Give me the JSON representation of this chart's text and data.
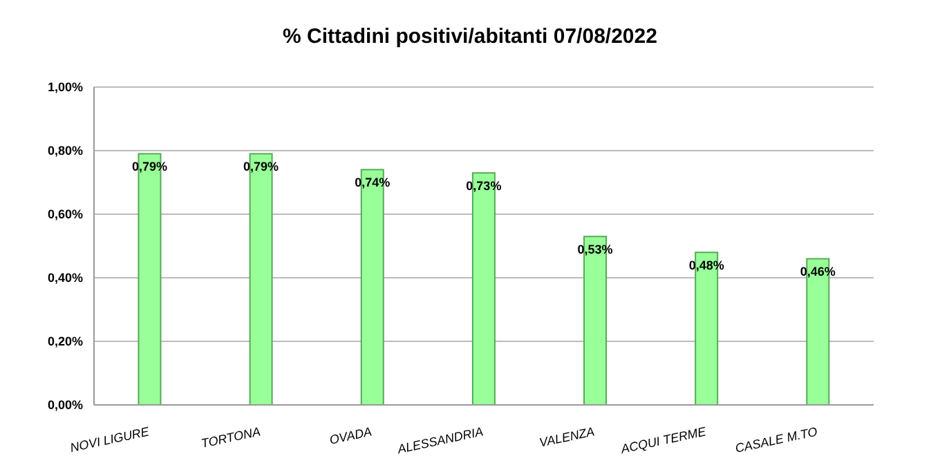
{
  "chart_data": {
    "type": "bar",
    "title": "% Cittadini positivi/abitanti 07/08/2022",
    "categories": [
      "NOVI LIGURE",
      "TORTONA",
      "OVADA",
      "ALESSANDRIA",
      "VALENZA",
      "ACQUI TERME",
      "CASALE M.TO"
    ],
    "values": [
      0.79,
      0.79,
      0.74,
      0.73,
      0.53,
      0.48,
      0.46
    ],
    "value_labels": [
      "0,79%",
      "0,79%",
      "0,74%",
      "0,73%",
      "0,53%",
      "0,48%",
      "0,46%"
    ],
    "color": "#99ff99",
    "ylim": [
      0,
      1
    ],
    "yticks": [
      {
        "value": 0,
        "label": "0,00%"
      },
      {
        "value": 0.2,
        "label": "0,20%"
      },
      {
        "value": 0.4,
        "label": "0,40%"
      },
      {
        "value": 0.6,
        "label": "0,60%"
      },
      {
        "value": 0.8,
        "label": "0,80%"
      },
      {
        "value": 1,
        "label": "1,00%"
      }
    ],
    "grid": "y"
  }
}
